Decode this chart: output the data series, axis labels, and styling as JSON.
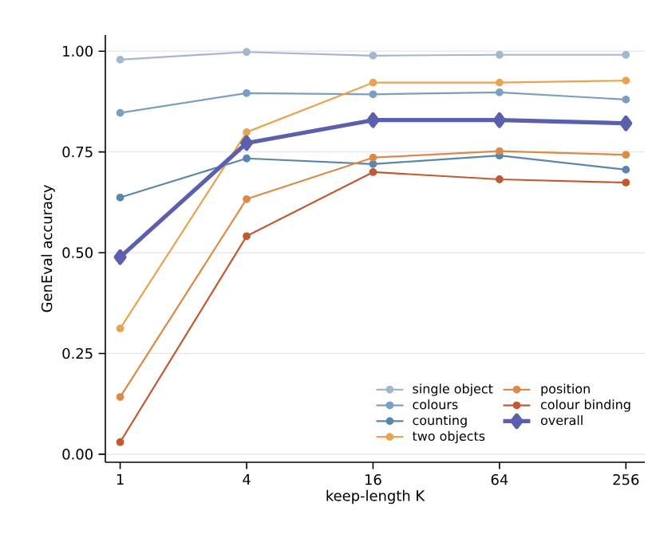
{
  "chart_data": {
    "type": "line",
    "xlabel": "keep-length K",
    "ylabel": "GenEval accuracy",
    "x": [
      1,
      4,
      16,
      64,
      256
    ],
    "log": "x",
    "xlim": [
      0.85,
      315
    ],
    "ylim": [
      -0.02,
      1.04
    ],
    "xticks": [
      1,
      4,
      16,
      64,
      256
    ],
    "yticks": [
      {
        "value": 0,
        "label": "0.00"
      },
      {
        "value": 0.25,
        "label": "0.25"
      },
      {
        "value": 0.5,
        "label": "0.50"
      },
      {
        "value": 0.75,
        "label": "0.75"
      },
      {
        "value": 1,
        "label": "1.00"
      }
    ],
    "grid": "y",
    "legend": "bottom right",
    "marker": "circle",
    "line_style": "solid",
    "series": [
      {
        "name": "single object",
        "color": "#a3b8cc",
        "values": [
          0.979,
          0.998,
          0.989,
          0.991,
          0.991
        ]
      },
      {
        "name": "colours",
        "color": "#7b9fc4",
        "values": [
          0.847,
          0.896,
          0.893,
          0.898,
          0.88
        ]
      },
      {
        "name": "counting",
        "color": "#5a86ad",
        "values": [
          0.637,
          0.734,
          0.72,
          0.741,
          0.706
        ]
      },
      {
        "name": "two objects",
        "color": "#e8a450",
        "values": [
          0.312,
          0.799,
          0.922,
          0.922,
          0.927
        ]
      },
      {
        "name": "position",
        "color": "#dd8a48",
        "values": [
          0.142,
          0.633,
          0.736,
          0.752,
          0.743
        ]
      },
      {
        "name": "colour binding",
        "color": "#c05a32",
        "values": [
          0.03,
          0.541,
          0.7,
          0.682,
          0.674
        ]
      },
      {
        "name": "overall",
        "color": "#5c5fad",
        "marker": "diamond",
        "values": [
          0.489,
          0.772,
          0.829,
          0.829,
          0.821
        ]
      }
    ]
  }
}
